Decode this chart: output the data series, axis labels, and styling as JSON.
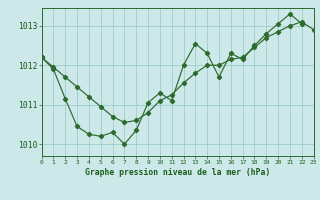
{
  "line1_x": [
    0,
    1,
    2,
    3,
    4,
    5,
    6,
    7,
    8,
    9,
    10,
    11,
    12,
    13,
    14,
    15,
    16,
    17,
    18,
    19,
    20,
    21,
    22
  ],
  "line1_y": [
    1012.2,
    1011.9,
    1011.15,
    1010.45,
    1010.25,
    1010.2,
    1010.3,
    1010.0,
    1010.35,
    1011.05,
    1011.3,
    1011.1,
    1012.0,
    1012.55,
    1012.3,
    1011.7,
    1012.3,
    1012.15,
    1012.5,
    1012.8,
    1013.05,
    1013.3,
    1013.05
  ],
  "line2_x": [
    0,
    1,
    2,
    3,
    4,
    5,
    6,
    7,
    8,
    9,
    10,
    11,
    12,
    13,
    14,
    15,
    16,
    17,
    18,
    19,
    20,
    21,
    22,
    23
  ],
  "line2_y": [
    1012.2,
    1011.95,
    1011.7,
    1011.45,
    1011.2,
    1010.95,
    1010.7,
    1010.55,
    1010.6,
    1010.8,
    1011.1,
    1011.25,
    1011.55,
    1011.8,
    1012.0,
    1012.0,
    1012.15,
    1012.2,
    1012.45,
    1012.7,
    1012.85,
    1013.0,
    1013.1,
    1012.9
  ],
  "xlim": [
    0,
    23
  ],
  "ylim": [
    1009.7,
    1013.45
  ],
  "yticks": [
    1010,
    1011,
    1012,
    1013
  ],
  "xticks": [
    0,
    1,
    2,
    3,
    4,
    5,
    6,
    7,
    8,
    9,
    10,
    11,
    12,
    13,
    14,
    15,
    16,
    17,
    18,
    19,
    20,
    21,
    22,
    23
  ],
  "xlabel": "Graphe pression niveau de la mer (hPa)",
  "line_color": "#2d6a2d",
  "bg_color": "#cce8e8",
  "grid_color": "#96c8c8",
  "text_color": "#1a5c1a",
  "axis_color": "#2d6a2d"
}
